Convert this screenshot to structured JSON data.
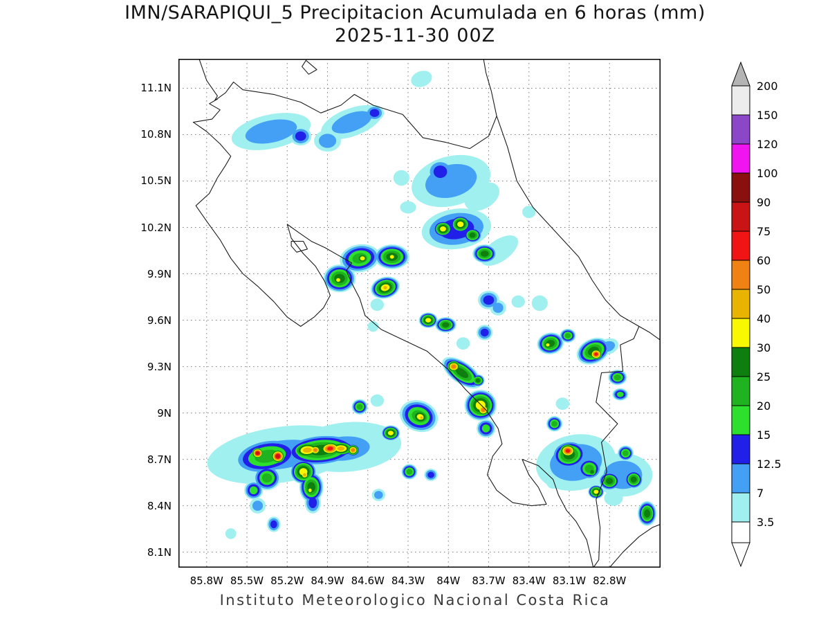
{
  "title": {
    "line1": "IMN/SARAPIQUI_5 Precipitacion Acumulada en 6 horas (mm)",
    "line2": "2025-11-30 00Z"
  },
  "footer": "Instituto Meteorologico Nacional Costa Rica",
  "chart_data": {
    "type": "heatmap",
    "title": "IMN/SARAPIQUI_5 Precipitacion Acumulada en 6 horas (mm)",
    "subtitle": "2025-11-30 00Z",
    "units": "mm",
    "xlabel": "",
    "ylabel": "",
    "legend_position": "right",
    "grid": true,
    "projection": {
      "lon_west": 86.01,
      "lon_east": 82.42,
      "lat_north": 11.29,
      "lat_south": 8.0
    },
    "x_ticks": [
      {
        "label": "85.8W",
        "lon": 85.8
      },
      {
        "label": "85.5W",
        "lon": 85.5
      },
      {
        "label": "85.2W",
        "lon": 85.2
      },
      {
        "label": "84.9W",
        "lon": 84.9
      },
      {
        "label": "84.6W",
        "lon": 84.6
      },
      {
        "label": "84.3W",
        "lon": 84.3
      },
      {
        "label": "84W",
        "lon": 84.0
      },
      {
        "label": "83.7W",
        "lon": 83.7
      },
      {
        "label": "83.4W",
        "lon": 83.4
      },
      {
        "label": "83.1W",
        "lon": 83.1
      },
      {
        "label": "82.8W",
        "lon": 82.8
      }
    ],
    "y_ticks": [
      {
        "label": "11.1N",
        "lat": 11.1
      },
      {
        "label": "10.8N",
        "lat": 10.8
      },
      {
        "label": "10.5N",
        "lat": 10.5
      },
      {
        "label": "10.2N",
        "lat": 10.2
      },
      {
        "label": "9.9N",
        "lat": 9.9
      },
      {
        "label": "9.6N",
        "lat": 9.6
      },
      {
        "label": "9.3N",
        "lat": 9.3
      },
      {
        "label": "9N",
        "lat": 9.0
      },
      {
        "label": "8.7N",
        "lat": 8.7
      },
      {
        "label": "8.4N",
        "lat": 8.4
      },
      {
        "label": "8.1N",
        "lat": 8.1
      }
    ],
    "colorbar": {
      "values": [
        3.5,
        7,
        12.5,
        15,
        20,
        25,
        30,
        40,
        50,
        60,
        75,
        90,
        100,
        120,
        150,
        200
      ],
      "colors": [
        "#a0f0f0",
        "#44a0f4",
        "#2020e8",
        "#2ee02e",
        "#1fb41f",
        "#0e7e0e",
        "#f8f800",
        "#e8b400",
        "#f08214",
        "#f01414",
        "#c81414",
        "#8a1010",
        "#f014f0",
        "#8c46c8",
        "#ececec",
        "#b4b4b4"
      ],
      "below_color": "#ffffff"
    },
    "storms": [
      [
        85.32,
        10.82,
        0.3,
        0.11,
        -12,
        7
      ],
      [
        85.1,
        10.79,
        0.08,
        0.06,
        0,
        12.5
      ],
      [
        84.9,
        10.76,
        0.1,
        0.07,
        0,
        7
      ],
      [
        84.72,
        10.88,
        0.24,
        0.09,
        -20,
        7
      ],
      [
        84.55,
        10.94,
        0.07,
        0.05,
        0,
        12.5
      ],
      [
        84.2,
        11.16,
        0.08,
        0.05,
        -20,
        3.5
      ],
      [
        84.35,
        10.52,
        0.06,
        0.05,
        0,
        3.5
      ],
      [
        83.98,
        10.5,
        0.3,
        0.16,
        -15,
        7
      ],
      [
        84.06,
        10.56,
        0.1,
        0.08,
        0,
        12.5
      ],
      [
        83.75,
        10.4,
        0.14,
        0.08,
        -30,
        3.5
      ],
      [
        84.3,
        10.33,
        0.06,
        0.04,
        0,
        3.5
      ],
      [
        83.94,
        10.19,
        0.26,
        0.13,
        -8,
        12.5
      ],
      [
        84.04,
        10.19,
        0.075,
        0.055,
        0,
        30
      ],
      [
        83.91,
        10.22,
        0.08,
        0.06,
        0,
        30
      ],
      [
        83.82,
        10.15,
        0.07,
        0.05,
        0,
        25
      ],
      [
        83.62,
        10.05,
        0.16,
        0.07,
        -35,
        3.5
      ],
      [
        83.73,
        10.03,
        0.09,
        0.06,
        0,
        25
      ],
      [
        83.4,
        10.3,
        0.05,
        0.04,
        0,
        3.5
      ],
      [
        84.66,
        10.0,
        0.15,
        0.09,
        -10,
        20
      ],
      [
        84.64,
        10.0,
        0.06,
        0.045,
        0,
        30
      ],
      [
        84.42,
        10.01,
        0.13,
        0.08,
        0,
        25
      ],
      [
        84.42,
        10.01,
        0.05,
        0.04,
        0,
        30
      ],
      [
        84.81,
        9.87,
        0.12,
        0.09,
        0,
        25
      ],
      [
        84.82,
        9.86,
        0.05,
        0.04,
        0,
        30
      ],
      [
        84.47,
        9.81,
        0.11,
        0.07,
        -15,
        30
      ],
      [
        84.47,
        9.81,
        0.05,
        0.04,
        0,
        40
      ],
      [
        84.53,
        9.7,
        0.05,
        0.04,
        0,
        3.5
      ],
      [
        83.7,
        9.73,
        0.08,
        0.06,
        0,
        12.5
      ],
      [
        83.63,
        9.68,
        0.06,
        0.05,
        0,
        7
      ],
      [
        83.48,
        9.72,
        0.05,
        0.04,
        0,
        3.5
      ],
      [
        83.32,
        9.71,
        0.06,
        0.05,
        0,
        3.5
      ],
      [
        84.15,
        9.6,
        0.07,
        0.05,
        0,
        30
      ],
      [
        84.02,
        9.57,
        0.08,
        0.05,
        0,
        25
      ],
      [
        84.56,
        9.56,
        0.04,
        0.035,
        0,
        3.5
      ],
      [
        83.73,
        9.52,
        0.06,
        0.05,
        0,
        12.5
      ],
      [
        83.89,
        9.45,
        0.05,
        0.04,
        0,
        3.5
      ],
      [
        83.24,
        9.45,
        0.1,
        0.07,
        -10,
        25
      ],
      [
        83.26,
        9.44,
        0.045,
        0.035,
        0,
        30
      ],
      [
        83.11,
        9.5,
        0.06,
        0.045,
        0,
        20
      ],
      [
        82.92,
        9.4,
        0.13,
        0.08,
        -25,
        25
      ],
      [
        82.9,
        9.38,
        0.055,
        0.042,
        0,
        60
      ],
      [
        82.81,
        9.43,
        0.08,
        0.05,
        -20,
        7
      ],
      [
        83.9,
        9.26,
        0.17,
        0.07,
        35,
        25
      ],
      [
        83.96,
        9.3,
        0.06,
        0.045,
        0,
        50
      ],
      [
        83.78,
        9.21,
        0.05,
        0.04,
        0,
        25
      ],
      [
        82.74,
        9.23,
        0.07,
        0.05,
        0,
        20
      ],
      [
        82.72,
        9.12,
        0.06,
        0.04,
        0,
        15
      ],
      [
        83.76,
        9.05,
        0.12,
        0.1,
        0,
        30
      ],
      [
        83.74,
        9.02,
        0.055,
        0.045,
        0,
        50
      ],
      [
        83.72,
        8.9,
        0.07,
        0.06,
        0,
        15
      ],
      [
        84.22,
        8.98,
        0.145,
        0.1,
        20,
        20
      ],
      [
        84.21,
        8.975,
        0.085,
        0.06,
        15,
        30
      ],
      [
        84.2,
        8.97,
        0.035,
        0.03,
        0,
        40
      ],
      [
        84.66,
        9.04,
        0.06,
        0.05,
        0,
        20
      ],
      [
        84.53,
        9.08,
        0.05,
        0.04,
        0,
        3.5
      ],
      [
        83.21,
        8.93,
        0.06,
        0.05,
        0,
        20
      ],
      [
        83.15,
        9.06,
        0.05,
        0.04,
        0,
        3.5
      ],
      [
        85.25,
        8.73,
        0.55,
        0.18,
        -8,
        3.5
      ],
      [
        85.25,
        8.73,
        0.44,
        0.14,
        -8,
        7
      ],
      [
        84.75,
        8.78,
        0.4,
        0.16,
        -5,
        3.5
      ],
      [
        84.78,
        8.77,
        0.3,
        0.12,
        -5,
        7
      ],
      [
        85.35,
        8.72,
        0.25,
        0.11,
        -10,
        20
      ],
      [
        84.95,
        8.76,
        0.28,
        0.1,
        -5,
        25
      ],
      [
        85.42,
        8.74,
        0.05,
        0.04,
        0,
        75
      ],
      [
        85.27,
        8.72,
        0.06,
        0.05,
        0,
        75
      ],
      [
        85.05,
        8.76,
        0.12,
        0.06,
        -5,
        40
      ],
      [
        84.88,
        8.77,
        0.09,
        0.05,
        -5,
        60
      ],
      [
        84.99,
        8.76,
        0.05,
        0.04,
        0,
        50
      ],
      [
        84.71,
        8.76,
        0.05,
        0.04,
        0,
        50
      ],
      [
        84.8,
        8.77,
        0.1,
        0.05,
        0,
        40
      ],
      [
        85.08,
        8.62,
        0.1,
        0.08,
        0,
        30
      ],
      [
        85.07,
        8.6,
        0.045,
        0.04,
        0,
        40
      ],
      [
        85.02,
        8.52,
        0.09,
        0.1,
        0,
        25
      ],
      [
        85.03,
        8.5,
        0.04,
        0.04,
        0,
        30
      ],
      [
        85.01,
        8.42,
        0.06,
        0.07,
        0,
        12.5
      ],
      [
        85.35,
        8.58,
        0.1,
        0.08,
        0,
        20
      ],
      [
        85.45,
        8.5,
        0.07,
        0.06,
        0,
        15
      ],
      [
        85.42,
        8.4,
        0.06,
        0.05,
        0,
        7
      ],
      [
        85.3,
        8.28,
        0.05,
        0.05,
        0,
        12.5
      ],
      [
        85.62,
        8.22,
        0.04,
        0.035,
        0,
        3.5
      ],
      [
        84.43,
        8.87,
        0.07,
        0.05,
        0,
        30
      ],
      [
        84.29,
        8.62,
        0.06,
        0.05,
        0,
        20
      ],
      [
        84.13,
        8.6,
        0.05,
        0.04,
        0,
        12.5
      ],
      [
        84.52,
        8.47,
        0.05,
        0.04,
        0,
        7
      ],
      [
        83.05,
        8.68,
        0.3,
        0.18,
        -10,
        7
      ],
      [
        82.7,
        8.6,
        0.22,
        0.14,
        0,
        7
      ],
      [
        83.1,
        8.73,
        0.13,
        0.09,
        -10,
        25
      ],
      [
        83.11,
        8.755,
        0.07,
        0.05,
        0,
        60
      ],
      [
        82.95,
        8.64,
        0.09,
        0.07,
        0,
        20
      ],
      [
        82.93,
        8.62,
        0.04,
        0.035,
        0,
        25
      ],
      [
        82.8,
        8.56,
        0.08,
        0.06,
        0,
        25
      ],
      [
        82.68,
        8.74,
        0.06,
        0.05,
        0,
        20
      ],
      [
        82.62,
        8.57,
        0.07,
        0.06,
        0,
        25
      ],
      [
        82.9,
        8.49,
        0.06,
        0.045,
        0,
        30
      ],
      [
        82.77,
        8.45,
        0.07,
        0.05,
        0,
        3.5
      ],
      [
        82.52,
        8.35,
        0.07,
        0.08,
        0,
        25
      ],
      [
        83.22,
        8.55,
        0.05,
        0.04,
        0,
        3.5
      ]
    ],
    "map_outline": [
      [
        [
          85.86,
          11.3
        ],
        [
          85.8,
          11.15
        ],
        [
          85.72,
          11.05
        ],
        [
          85.74,
          11.02
        ],
        [
          85.66,
          11.07
        ],
        [
          85.6,
          11.14
        ],
        [
          85.53,
          11.09
        ],
        [
          85.3,
          11.06
        ],
        [
          85.1,
          11.01
        ],
        [
          84.95,
          10.94
        ],
        [
          84.8,
          10.99
        ],
        [
          84.7,
          11.06
        ],
        [
          84.56,
          10.99
        ],
        [
          84.34,
          10.93
        ],
        [
          84.19,
          10.78
        ],
        [
          84.02,
          10.75
        ],
        [
          83.84,
          10.71
        ],
        [
          83.7,
          10.79
        ],
        [
          83.64,
          10.92
        ],
        [
          83.68,
          11.08
        ],
        [
          83.72,
          11.2
        ],
        [
          83.74,
          11.3
        ]
      ],
      [
        [
          83.64,
          10.92
        ],
        [
          83.56,
          10.72
        ],
        [
          83.49,
          10.5
        ],
        [
          83.37,
          10.33
        ],
        [
          83.2,
          10.17
        ],
        [
          83.03,
          10.01
        ],
        [
          82.93,
          9.86
        ],
        [
          82.83,
          9.73
        ],
        [
          82.72,
          9.63
        ],
        [
          82.58,
          9.56
        ],
        [
          82.5,
          9.52
        ],
        [
          82.42,
          9.47
        ]
      ],
      [
        [
          82.58,
          9.56
        ],
        [
          82.62,
          9.48
        ],
        [
          82.72,
          9.44
        ],
        [
          82.7,
          9.27
        ],
        [
          82.86,
          9.26
        ],
        [
          82.9,
          9.07
        ],
        [
          82.74,
          8.93
        ],
        [
          82.86,
          8.81
        ],
        [
          82.82,
          8.62
        ],
        [
          82.9,
          8.44
        ],
        [
          82.87,
          8.26
        ],
        [
          82.88,
          8.05
        ],
        [
          82.92,
          8.0
        ]
      ],
      [
        [
          82.92,
          8.0
        ],
        [
          82.97,
          8.18
        ],
        [
          83.05,
          8.3
        ],
        [
          83.12,
          8.37
        ],
        [
          83.18,
          8.47
        ],
        [
          83.22,
          8.57
        ],
        [
          83.33,
          8.66
        ],
        [
          83.45,
          8.7
        ],
        [
          83.4,
          8.6
        ],
        [
          83.33,
          8.52
        ],
        [
          83.27,
          8.41
        ],
        [
          83.38,
          8.4
        ],
        [
          83.52,
          8.42
        ],
        [
          83.64,
          8.5
        ],
        [
          83.71,
          8.6
        ],
        [
          83.67,
          8.72
        ],
        [
          83.6,
          8.8
        ],
        [
          83.63,
          8.9
        ],
        [
          83.72,
          9.02
        ],
        [
          83.87,
          9.15
        ],
        [
          84.0,
          9.28
        ],
        [
          84.16,
          9.4
        ],
        [
          84.33,
          9.47
        ],
        [
          84.5,
          9.54
        ],
        [
          84.62,
          9.63
        ],
        [
          84.66,
          9.74
        ],
        [
          84.72,
          9.84
        ],
        [
          84.76,
          9.92
        ],
        [
          84.72,
          9.97
        ],
        [
          84.82,
          10.02
        ],
        [
          84.92,
          10.07
        ],
        [
          85.02,
          10.11
        ],
        [
          85.12,
          10.17
        ],
        [
          85.2,
          10.22
        ],
        [
          85.17,
          10.13
        ],
        [
          85.08,
          10.03
        ],
        [
          84.99,
          9.95
        ],
        [
          84.92,
          9.85
        ],
        [
          84.88,
          9.76
        ],
        [
          84.93,
          9.68
        ],
        [
          85.0,
          9.62
        ],
        [
          85.1,
          9.56
        ],
        [
          85.2,
          9.62
        ],
        [
          85.3,
          9.72
        ],
        [
          85.42,
          9.82
        ],
        [
          85.53,
          9.9
        ],
        [
          85.62,
          10.0
        ],
        [
          85.7,
          10.12
        ],
        [
          85.8,
          10.24
        ],
        [
          85.88,
          10.34
        ],
        [
          85.78,
          10.42
        ],
        [
          85.72,
          10.52
        ],
        [
          85.66,
          10.6
        ],
        [
          85.62,
          10.66
        ],
        [
          85.7,
          10.74
        ],
        [
          85.8,
          10.82
        ],
        [
          85.9,
          10.88
        ],
        [
          85.76,
          10.9
        ],
        [
          85.7,
          10.96
        ],
        [
          85.78,
          11.0
        ],
        [
          85.72,
          11.03
        ]
      ],
      [
        [
          82.8,
          8.0
        ],
        [
          82.7,
          8.1
        ],
        [
          82.58,
          8.2
        ],
        [
          82.48,
          8.26
        ],
        [
          82.42,
          8.28
        ]
      ]
    ],
    "map_polygons": [
      [
        [
          85.06,
          11.28
        ],
        [
          84.98,
          11.22
        ],
        [
          85.04,
          11.19
        ],
        [
          85.09,
          11.24
        ]
      ],
      [
        [
          85.17,
          10.11
        ],
        [
          85.08,
          10.11
        ],
        [
          85.05,
          10.06
        ],
        [
          85.13,
          10.04
        ],
        [
          85.17,
          10.08
        ]
      ]
    ]
  }
}
